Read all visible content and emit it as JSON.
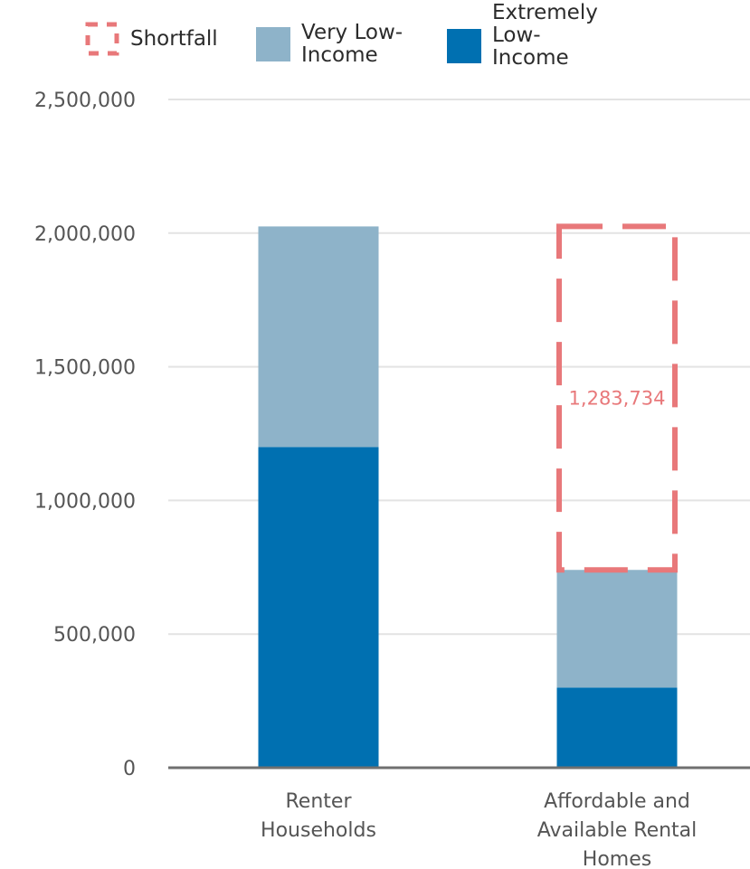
{
  "legend": {
    "shortfall": "Shortfall",
    "very_low": "Very Low-Income",
    "extremely_low": "Extremely Low-Income"
  },
  "colors": {
    "extremely_low": "#0070b1",
    "very_low": "#8eb3c9",
    "shortfall": "#e8787a",
    "grid": "#e3e3e3",
    "axis": "#707070"
  },
  "chart_data": {
    "type": "bar",
    "stacked": true,
    "categories": [
      "Renter Households",
      "Affordable and Available Rental Homes"
    ],
    "series": [
      {
        "name": "Extremely Low-Income",
        "values": [
          1200000,
          300000
        ]
      },
      {
        "name": "Very Low-Income",
        "values": [
          825000,
          440000
        ]
      }
    ],
    "shortfall": {
      "category": "Affordable and Available Rental Homes",
      "label": "1,283,734",
      "from": 740000,
      "to": 2025000
    },
    "ylim": [
      0,
      2500000
    ],
    "yticks": [
      0,
      500000,
      1000000,
      1500000,
      2000000,
      2500000
    ],
    "ytick_labels": [
      "0",
      "500,000",
      "1,000,000",
      "1,500,000",
      "2,000,000",
      "2,500,000"
    ],
    "xlabel": "",
    "ylabel": "",
    "grid": true,
    "legend_position": "top"
  }
}
